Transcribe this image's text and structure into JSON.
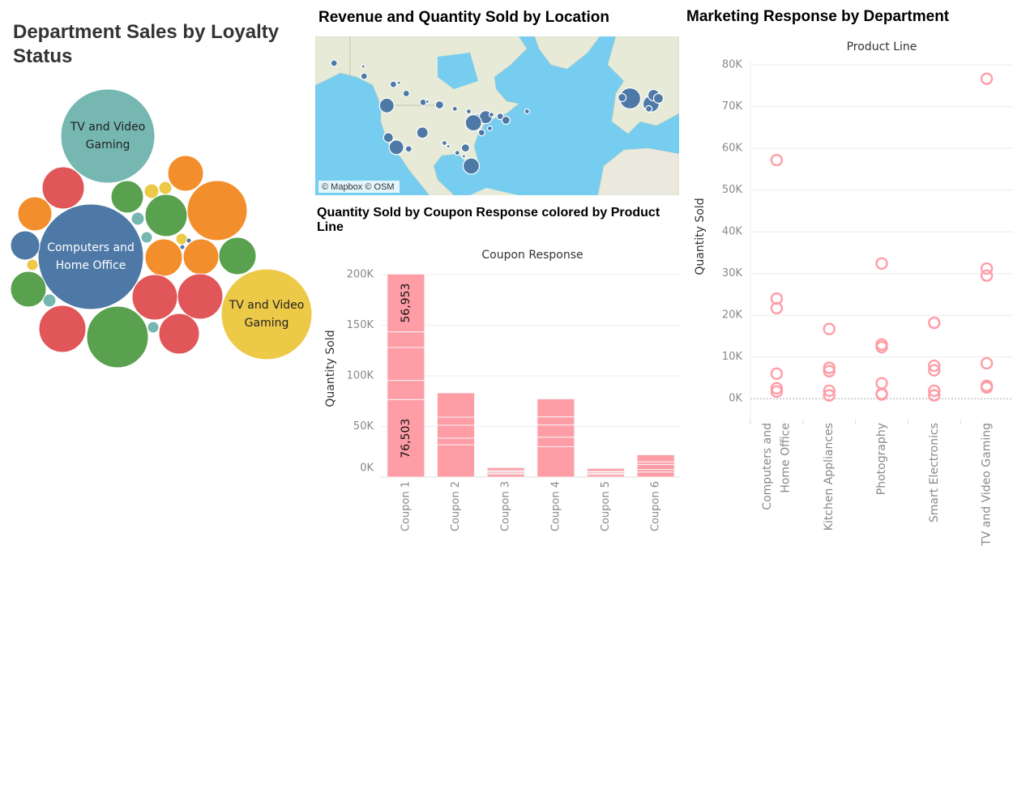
{
  "chart_data": [
    {
      "type": "bubble",
      "title": "Department Sales by Loyalty Status",
      "labels": [
        "TV and Video Gaming",
        "Computers and Home Office",
        "TV and Video Gaming",
        null,
        null,
        null,
        null,
        null,
        null,
        null,
        null,
        null,
        null,
        null,
        null,
        null,
        null,
        null,
        null,
        null,
        null,
        null,
        null,
        null,
        null,
        null,
        null,
        null,
        null
      ],
      "values": [
        33640,
        42250,
        31360,
        6760,
        4000,
        4840,
        810,
        640,
        13690,
        6760,
        4410,
        3240,
        640,
        490,
        490,
        90,
        90,
        5290,
        4840,
        5290,
        490,
        4840,
        640,
        7840,
        7840,
        8410,
        14440,
        490,
        6250
      ],
      "colors": [
        "#76b7b2",
        "#4e79a7",
        "#edc948",
        "#e15759",
        "#59a14f",
        "#f28e2b",
        "#edc948",
        "#edc948",
        "#f28e2b",
        "#59a14f",
        "#f28e2b",
        "#4e79a7",
        "#76b7b2",
        "#76b7b2",
        "#edc948",
        "#4e79a7",
        "#4e79a7",
        "#f28e2b",
        "#f28e2b",
        "#59a14f",
        "#edc948",
        "#59a14f",
        "#76b7b2",
        "#e15759",
        "#e15759",
        "#e15759",
        "#59a14f",
        "#76b7b2",
        "#e15759"
      ]
    },
    {
      "type": "map",
      "title": "Revenue and Quantity Sold by Location",
      "attribution": "© Mapbox © OSM",
      "xlim": [
        -157,
        21
      ],
      "ylim": [
        17,
        65.7
      ],
      "color": "#4e79a7",
      "x": [
        -147.8,
        -133.5,
        -133.1,
        -118.8,
        -116.1,
        -112.5,
        -122.0,
        -104.2,
        -102.2,
        -96.2,
        -88.7,
        -81.9,
        -78.0,
        -73.6,
        -79.6,
        -70.8,
        -66.5,
        -63.7,
        -53.4,
        -121.2,
        -117.3,
        -111.3,
        -104.6,
        -93.8,
        -91.9,
        -83.5,
        -87.5,
        -75.6,
        -71.6,
        -80.7,
        -84.3,
        -3.0,
        7.3,
        8.5,
        10.9,
        6.2,
        -6.9
      ],
      "values": [
        57.5,
        56.5,
        53.5,
        51.0,
        51.5,
        48.2,
        44.5,
        45.5,
        45.7,
        44.7,
        43.5,
        42.7,
        40.7,
        40.95,
        39.2,
        41.7,
        41.2,
        40.0,
        42.7,
        34.7,
        31.7,
        31.2,
        36.2,
        33.0,
        32.0,
        31.5,
        30.0,
        36.2,
        37.5,
        25.95,
        28.95,
        46.7,
        45.0,
        47.7,
        46.7,
        43.5,
        46.95
      ],
      "sizes": [
        160,
        40,
        160,
        160,
        40,
        160,
        810,
        160,
        40,
        250,
        90,
        90,
        250,
        640,
        1000,
        90,
        160,
        250,
        90,
        360,
        810,
        160,
        490,
        90,
        40,
        250,
        90,
        160,
        90,
        1000,
        40,
        1690,
        1000,
        490,
        360,
        160,
        250
      ]
    },
    {
      "type": "bar",
      "title": "Quantity Sold by Coupon Response colored by Product Line",
      "header": "Coupon Response",
      "y_label": "Quantity Sold",
      "color": "#ff9da7",
      "categories": [
        "Coupon 1",
        "Coupon 2",
        "Coupon 3",
        "Coupon 4",
        "Coupon 5",
        "Coupon 6"
      ],
      "series": [
        {
          "values": [
            76503,
            32000,
            3000,
            30000,
            2500,
            5000
          ],
          "value_labels": [
            "76,503",
            null,
            null,
            null,
            null,
            null
          ]
        },
        {
          "values": [
            19000,
            6400,
            1000,
            9500,
            1000,
            2500
          ]
        },
        {
          "values": [
            32500,
            12800,
            1500,
            12000,
            1500,
            5000
          ]
        },
        {
          "values": [
            15500,
            8000,
            800,
            8000,
            700,
            2500
          ]
        },
        {
          "values": [
            56953,
            24000,
            3000,
            17700,
            2800,
            7000
          ],
          "value_labels": [
            "56,953",
            null,
            null,
            null,
            null,
            null
          ]
        }
      ],
      "ylim": [
        0,
        200000
      ],
      "yticks": [
        {
          "value": 0,
          "label": "0K"
        },
        {
          "value": 50000,
          "label": "50K"
        },
        {
          "value": 100000,
          "label": "100K"
        },
        {
          "value": 150000,
          "label": "150K"
        },
        {
          "value": 200000,
          "label": "200K"
        }
      ],
      "grid": true
    },
    {
      "type": "scatter",
      "title": "Marketing Response by Department",
      "header": "Product Line",
      "y_label": "Quantity Sold",
      "color": "#ff9da7",
      "categories": [
        "Computers and Home Office",
        "Kitchen Appliances",
        "Photography",
        "Smart Electronics",
        "TV and Video Gaming"
      ],
      "values": [
        [
          57200,
          24000,
          21700,
          6000,
          2500,
          1700
        ],
        [
          16700,
          7400,
          6600,
          1900,
          800
        ],
        [
          32400,
          13000,
          12400,
          3700,
          1200,
          1000
        ],
        [
          18200,
          7900,
          6800,
          1900,
          800
        ],
        [
          76700,
          31200,
          29500,
          8500,
          3100,
          2700
        ]
      ],
      "ylim": [
        -5000,
        81000
      ],
      "yticks": [
        {
          "value": 0,
          "label": "0K"
        },
        {
          "value": 10000,
          "label": "10K"
        },
        {
          "value": 20000,
          "label": "20K"
        },
        {
          "value": 30000,
          "label": "30K"
        },
        {
          "value": 40000,
          "label": "40K"
        },
        {
          "value": 50000,
          "label": "50K"
        },
        {
          "value": 60000,
          "label": "60K"
        },
        {
          "value": 70000,
          "label": "70K"
        },
        {
          "value": 80000,
          "label": "80K"
        }
      ],
      "grid": true
    }
  ]
}
